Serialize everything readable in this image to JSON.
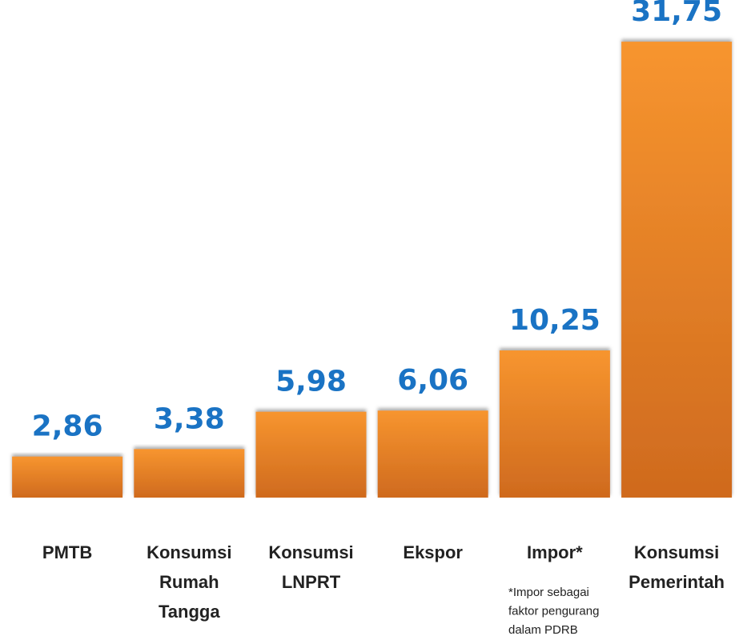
{
  "chart_data": {
    "type": "bar",
    "categories": [
      "PMTB",
      "Konsumsi Rumah Tangga",
      "Konsumsi LNPRT",
      "Ekspor",
      "Impor*",
      "Konsumsi Pemerintah"
    ],
    "values": [
      2.86,
      3.38,
      5.98,
      6.06,
      10.25,
      31.75
    ],
    "value_labels": [
      "2,86",
      "3,38",
      "5,98",
      "6,06",
      "10,25",
      "31,75"
    ],
    "color": "#f7952f",
    "ylim": [
      0,
      32
    ],
    "annotations": [
      "*Impor sebagai faktor pengurang dalam PDRB"
    ]
  }
}
